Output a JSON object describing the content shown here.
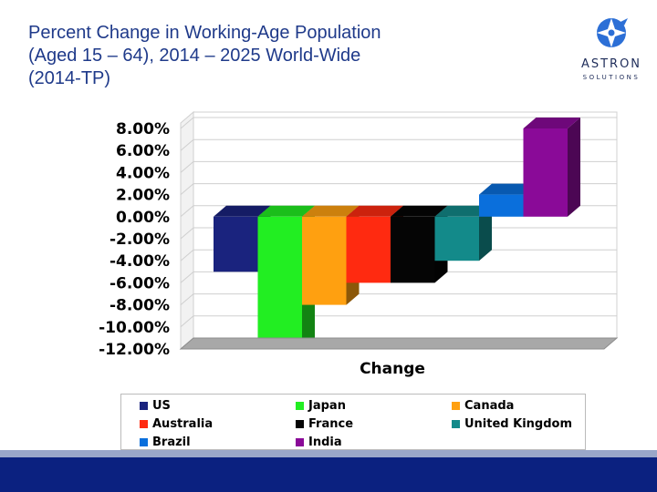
{
  "slide": {
    "title_lines": [
      "Percent Change in Working-Age Population",
      "(Aged 15 – 64), 2014 – 2025 World-Wide",
      "(2014-TP)"
    ],
    "logo_name": "ASTRON",
    "logo_sub": "SOLUTIONS",
    "logo_icon": "astron-star-icon",
    "bar_color": "#0b2180"
  },
  "chart_data": {
    "type": "bar",
    "style": "3d-clustered",
    "categories": [
      "Change"
    ],
    "xlabel": "Change",
    "ylim": [
      -12,
      8
    ],
    "yticks": [
      "8.00%",
      "6.00%",
      "4.00%",
      "2.00%",
      "0.00%",
      "-2.00%",
      "-4.00%",
      "-6.00%",
      "-8.00%",
      "-10.00%",
      "-12.00%"
    ],
    "grid": true,
    "legend_position": "bottom",
    "series": [
      {
        "name": "US",
        "values": [
          -5.0
        ],
        "color": "#1a237e"
      },
      {
        "name": "Japan",
        "values": [
          -12.0
        ],
        "color": "#22ee22"
      },
      {
        "name": "Canada",
        "values": [
          -8.0
        ],
        "color": "#ffa010"
      },
      {
        "name": "Australia",
        "values": [
          -6.0
        ],
        "color": "#ff2a10"
      },
      {
        "name": "France",
        "values": [
          -6.0
        ],
        "color": "#050505"
      },
      {
        "name": "United Kingdom",
        "values": [
          -4.0
        ],
        "color": "#138a8a"
      },
      {
        "name": "Brazil",
        "values": [
          2.0
        ],
        "color": "#0a6fdc"
      },
      {
        "name": "India",
        "values": [
          8.0
        ],
        "color": "#8a0a98"
      }
    ]
  }
}
